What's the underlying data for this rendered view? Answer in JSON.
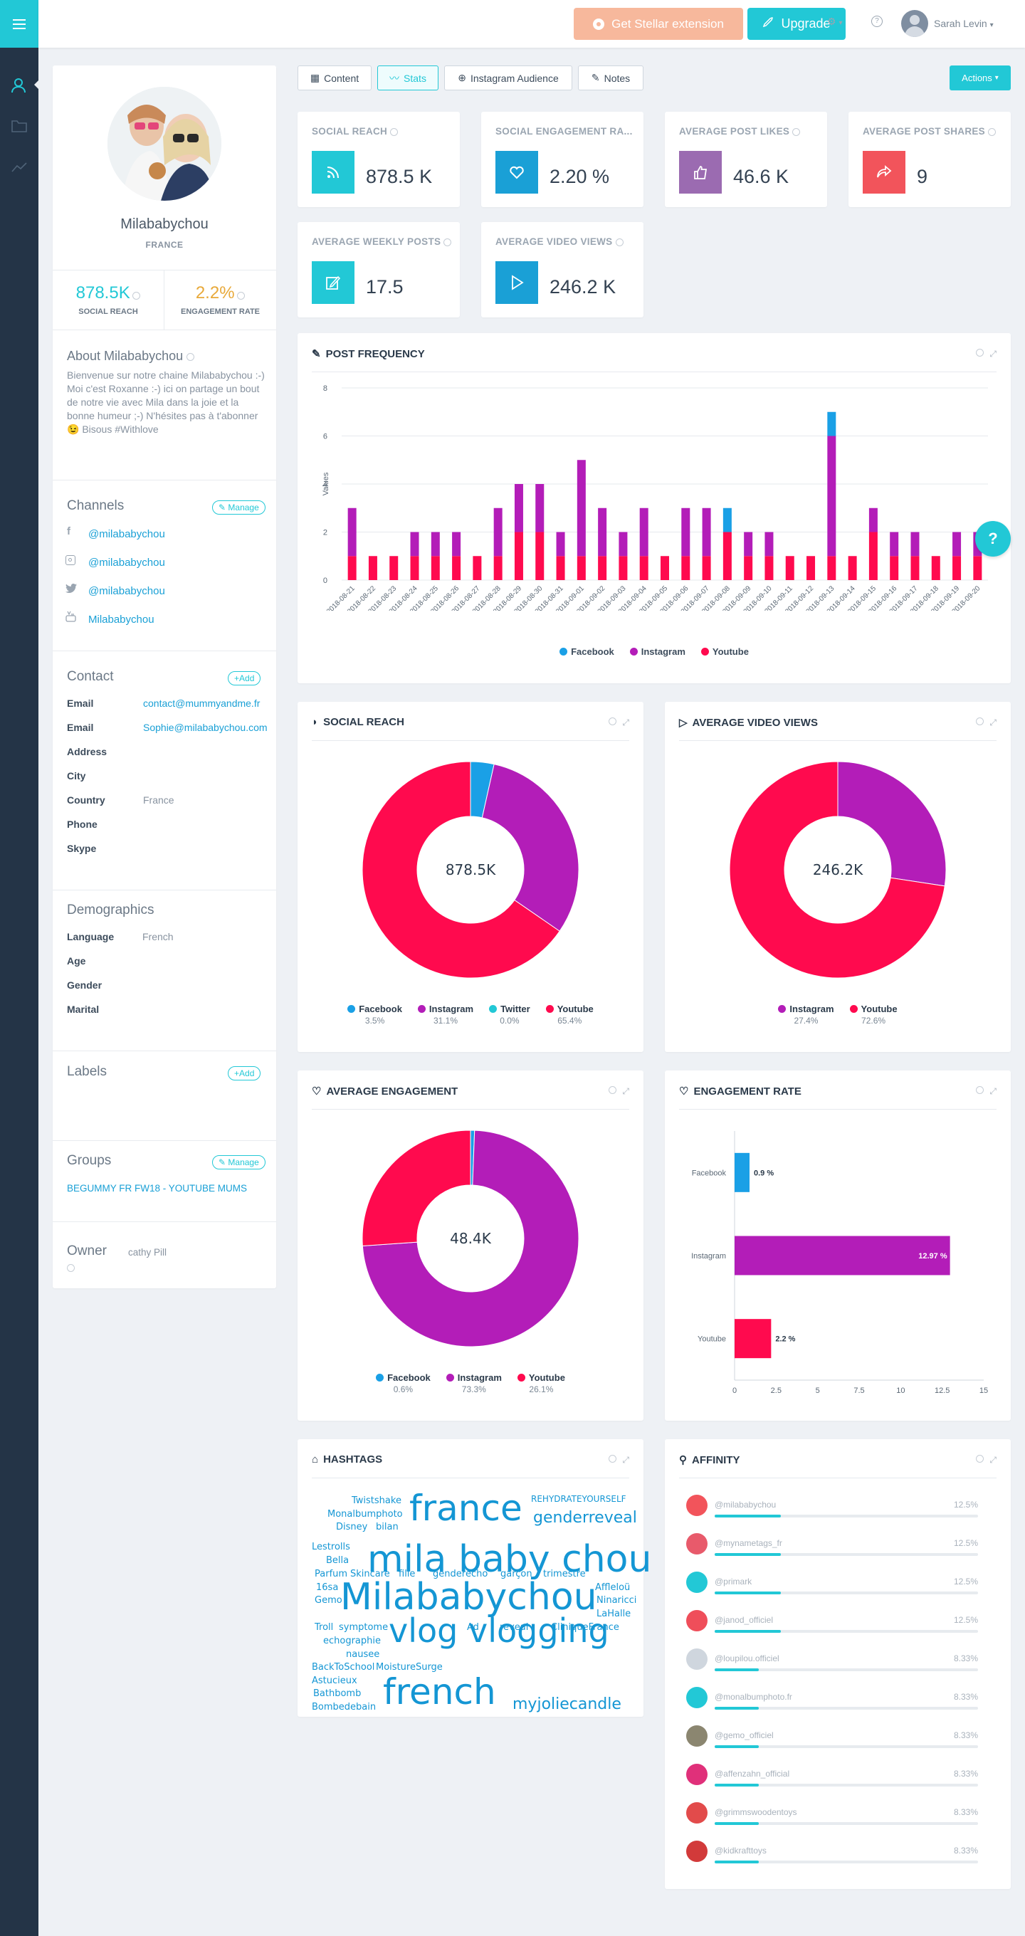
{
  "topbar": {
    "stellar_label": "Get Stellar extension",
    "upgrade_label": "Upgrade",
    "user_name": "Sarah Levin"
  },
  "tabs": [
    {
      "label": "Content",
      "active": false
    },
    {
      "label": "Stats",
      "active": true
    },
    {
      "label": "Instagram Audience",
      "active": false
    },
    {
      "label": "Notes",
      "active": false
    }
  ],
  "actions_label": "Actions",
  "profile": {
    "name": "Milababychou",
    "country": "FRANCE",
    "social_reach": "878.5K",
    "social_reach_label": "SOCIAL REACH",
    "engagement_rate": "2.2%",
    "engagement_rate_label": "ENGAGEMENT RATE",
    "about_title": "About Milababychou",
    "about_text": "Bienvenue sur notre chaine Milababychou :-) Moi c'est Roxanne :-) ici on partage un bout de notre vie avec Mila dans la joie et la bonne humeur ;-) N'hésites pas à t'abonner 😉 Bisous #Withlove"
  },
  "channels": {
    "title": "Channels",
    "manage_label": "Manage",
    "items": [
      {
        "network": "facebook",
        "handle": "@milababychou"
      },
      {
        "network": "instagram",
        "handle": "@milababychou"
      },
      {
        "network": "twitter",
        "handle": "@milababychou"
      },
      {
        "network": "youtube",
        "handle": "Milababychou"
      }
    ]
  },
  "contact": {
    "title": "Contact",
    "add_label": "Add",
    "rows": [
      {
        "key": "Email",
        "value": "contact@mummyandme.fr"
      },
      {
        "key": "Email",
        "value": "Sophie@milababychou.com"
      },
      {
        "key": "Address",
        "value": ""
      },
      {
        "key": "City",
        "value": ""
      },
      {
        "key": "Country",
        "value": "France"
      },
      {
        "key": "Phone",
        "value": ""
      },
      {
        "key": "Skype",
        "value": ""
      }
    ]
  },
  "demographics": {
    "title": "Demographics",
    "rows": [
      {
        "key": "Language",
        "value": "French"
      },
      {
        "key": "Age",
        "value": ""
      },
      {
        "key": "Gender",
        "value": ""
      },
      {
        "key": "Marital",
        "value": ""
      }
    ]
  },
  "labels": {
    "title": "Labels",
    "add_label": "Add"
  },
  "groups": {
    "title": "Groups",
    "manage_label": "Manage",
    "item": "BEGUMMY FR FW18 - YOUTUBE MUMS"
  },
  "owner": {
    "title": "Owner",
    "value": "cathy Pill"
  },
  "stats": [
    {
      "label": "SOCIAL REACH",
      "value": "878.5 K",
      "color": "#22c8d6",
      "icon": "rss-icon"
    },
    {
      "label": "SOCIAL ENGAGEMENT RA...",
      "value": "2.20 %",
      "color": "#1aa0d6",
      "icon": "heart-icon"
    },
    {
      "label": "AVERAGE POST LIKES",
      "value": "46.6 K",
      "color": "#9b6bb1",
      "icon": "thumb-icon"
    },
    {
      "label": "AVERAGE POST SHARES",
      "value": "9",
      "color": "#f2545b",
      "icon": "share-icon"
    },
    {
      "label": "AVERAGE WEEKLY POSTS",
      "value": "17.5",
      "color": "#22c8d6",
      "icon": "edit-icon"
    },
    {
      "label": "AVERAGE VIDEO VIEWS",
      "value": "246.2 K",
      "color": "#1aa0d6",
      "icon": "play-icon"
    }
  ],
  "colors": {
    "facebook": "#1aa0e6",
    "instagram": "#b31db8",
    "twitter": "#22c8d6",
    "youtube": "#ff0a4e",
    "accent": "#22c8d6"
  },
  "panels": {
    "post_frequency": "POST FREQUENCY",
    "social_reach": "SOCIAL REACH",
    "average_video_views": "AVERAGE VIDEO VIEWS",
    "average_engagement": "AVERAGE ENGAGEMENT",
    "engagement_rate": "ENGAGEMENT RATE",
    "hashtags": "HASHTAGS",
    "affinity": "AFFINITY"
  },
  "chart_data": [
    {
      "type": "bar",
      "id": "post_frequency",
      "ylabel": "Values",
      "ylim": [
        0,
        8
      ],
      "yticks": [
        0,
        2,
        4,
        6,
        8
      ],
      "categories": [
        "2018-08-21",
        "2018-08-22",
        "2018-08-23",
        "2018-08-24",
        "2018-08-25",
        "2018-08-26",
        "2018-08-27",
        "2018-08-28",
        "2018-08-29",
        "2018-08-30",
        "2018-08-31",
        "2018-09-01",
        "2018-09-02",
        "2018-09-03",
        "2018-09-04",
        "2018-09-05",
        "2018-09-06",
        "2018-09-07",
        "2018-09-08",
        "2018-09-09",
        "2018-09-10",
        "2018-09-11",
        "2018-09-12",
        "2018-09-13",
        "2018-09-14",
        "2018-09-15",
        "2018-09-16",
        "2018-09-17",
        "2018-09-18",
        "2018-09-19",
        "2018-09-20"
      ],
      "series": [
        {
          "name": "Youtube",
          "values": [
            1,
            1,
            1,
            1,
            1,
            1,
            1,
            1,
            2,
            2,
            1,
            1,
            1,
            1,
            1,
            1,
            1,
            1,
            2,
            1,
            1,
            1,
            1,
            1,
            1,
            2,
            1,
            1,
            1,
            1,
            1
          ]
        },
        {
          "name": "Instagram",
          "values": [
            2,
            0,
            0,
            1,
            1,
            1,
            0,
            2,
            2,
            2,
            1,
            4,
            2,
            1,
            2,
            0,
            2,
            2,
            0,
            1,
            1,
            0,
            0,
            5,
            0,
            1,
            1,
            1,
            0,
            1,
            1
          ]
        },
        {
          "name": "Facebook",
          "values": [
            0,
            0,
            0,
            0,
            0,
            0,
            0,
            0,
            0,
            0,
            0,
            0,
            0,
            0,
            0,
            0,
            0,
            0,
            1,
            0,
            0,
            0,
            0,
            1,
            0,
            0,
            0,
            0,
            0,
            0,
            0
          ]
        }
      ],
      "legend": [
        "Facebook",
        "Instagram",
        "Youtube"
      ],
      "legend_position": "bottom"
    },
    {
      "type": "pie",
      "id": "social_reach",
      "center_label": "878.5K",
      "slices": [
        {
          "name": "Facebook",
          "value": 3.5,
          "label": "3.5%"
        },
        {
          "name": "Instagram",
          "value": 31.1,
          "label": "31.1%"
        },
        {
          "name": "Twitter",
          "value": 0.0,
          "label": "0.0%"
        },
        {
          "name": "Youtube",
          "value": 65.4,
          "label": "65.4%"
        }
      ]
    },
    {
      "type": "pie",
      "id": "average_video_views",
      "center_label": "246.2K",
      "slices": [
        {
          "name": "Instagram",
          "value": 27.4,
          "label": "27.4%"
        },
        {
          "name": "Youtube",
          "value": 72.6,
          "label": "72.6%"
        }
      ]
    },
    {
      "type": "pie",
      "id": "average_engagement",
      "center_label": "48.4K",
      "slices": [
        {
          "name": "Facebook",
          "value": 0.6,
          "label": "0.6%"
        },
        {
          "name": "Instagram",
          "value": 73.3,
          "label": "73.3%"
        },
        {
          "name": "Youtube",
          "value": 26.1,
          "label": "26.1%"
        }
      ]
    },
    {
      "type": "bar",
      "id": "engagement_rate",
      "orientation": "horizontal",
      "categories": [
        "Facebook",
        "Instagram",
        "Youtube"
      ],
      "values": [
        0.9,
        12.97,
        2.2
      ],
      "value_labels": [
        "0.9 %",
        "12.97 %",
        "2.2 %"
      ],
      "xlim": [
        0,
        15
      ],
      "xticks": [
        "0",
        "2.5",
        "5",
        "7.5",
        "10",
        "12.5",
        "15"
      ]
    }
  ],
  "hashtags": [
    {
      "text": "Twistshake",
      "size": 13
    },
    {
      "text": "Monalbumphoto",
      "size": 13
    },
    {
      "text": "Disney",
      "size": 13
    },
    {
      "text": "bilan",
      "size": 13
    },
    {
      "text": "france",
      "size": 50
    },
    {
      "text": "REHYDRATEYOURSELF",
      "size": 12
    },
    {
      "text": "genderreveal",
      "size": 22
    },
    {
      "text": "Lestrolls",
      "size": 13
    },
    {
      "text": "Bella",
      "size": 13
    },
    {
      "text": "mila baby chou",
      "size": 52
    },
    {
      "text": "Parfum",
      "size": 13
    },
    {
      "text": "Skincare",
      "size": 13
    },
    {
      "text": "fille",
      "size": 13
    },
    {
      "text": "gender",
      "size": 13
    },
    {
      "text": "echo",
      "size": 13
    },
    {
      "text": "garçon",
      "size": 13
    },
    {
      "text": "trimestre",
      "size": 13
    },
    {
      "text": "16sa",
      "size": 13
    },
    {
      "text": "Affleloü",
      "size": 13
    },
    {
      "text": "Gemo",
      "size": 13
    },
    {
      "text": "Milababychou",
      "size": 52
    },
    {
      "text": "Ninaricci",
      "size": 13
    },
    {
      "text": "LaHalle",
      "size": 13
    },
    {
      "text": "Troll",
      "size": 13
    },
    {
      "text": "symptome",
      "size": 13
    },
    {
      "text": "Ad",
      "size": 13
    },
    {
      "text": "reveal",
      "size": 13
    },
    {
      "text": "CliniqueFrance",
      "size": 13
    },
    {
      "text": "echographie",
      "size": 13
    },
    {
      "text": "vlog",
      "size": 46
    },
    {
      "text": "vlogging",
      "size": 46
    },
    {
      "text": "nausee",
      "size": 13
    },
    {
      "text": "BackToSchool",
      "size": 13
    },
    {
      "text": "MoistureSurge",
      "size": 13
    },
    {
      "text": "Astucieux",
      "size": 13
    },
    {
      "text": "Bathbomb",
      "size": 13
    },
    {
      "text": "french",
      "size": 50
    },
    {
      "text": "Bombedebain",
      "size": 13
    },
    {
      "text": "myjoliecandle",
      "size": 22
    }
  ],
  "affinity": [
    {
      "name": "@milababychou",
      "pct": "12.5%",
      "value": 12.5,
      "color": "#f2545b"
    },
    {
      "name": "@mynametags_fr",
      "pct": "12.5%",
      "value": 12.5,
      "color": "#e85a6b"
    },
    {
      "name": "@primark",
      "pct": "12.5%",
      "value": 12.5,
      "color": "#22c8d6"
    },
    {
      "name": "@janod_officiel",
      "pct": "12.5%",
      "value": 12.5,
      "color": "#ef4e5a"
    },
    {
      "name": "@loupilou.officiel",
      "pct": "8.33%",
      "value": 8.33,
      "color": "#cfd6de"
    },
    {
      "name": "@monalbumphoto.fr",
      "pct": "8.33%",
      "value": 8.33,
      "color": "#22c8d6"
    },
    {
      "name": "@gemo_officiel",
      "pct": "8.33%",
      "value": 8.33,
      "color": "#8b8670"
    },
    {
      "name": "@affenzahn_official",
      "pct": "8.33%",
      "value": 8.33,
      "color": "#e0307a"
    },
    {
      "name": "@grimmswoodentoys",
      "pct": "8.33%",
      "value": 8.33,
      "color": "#e24b4b"
    },
    {
      "name": "@kidkrafttoys",
      "pct": "8.33%",
      "value": 8.33,
      "color": "#d23a3a"
    }
  ]
}
